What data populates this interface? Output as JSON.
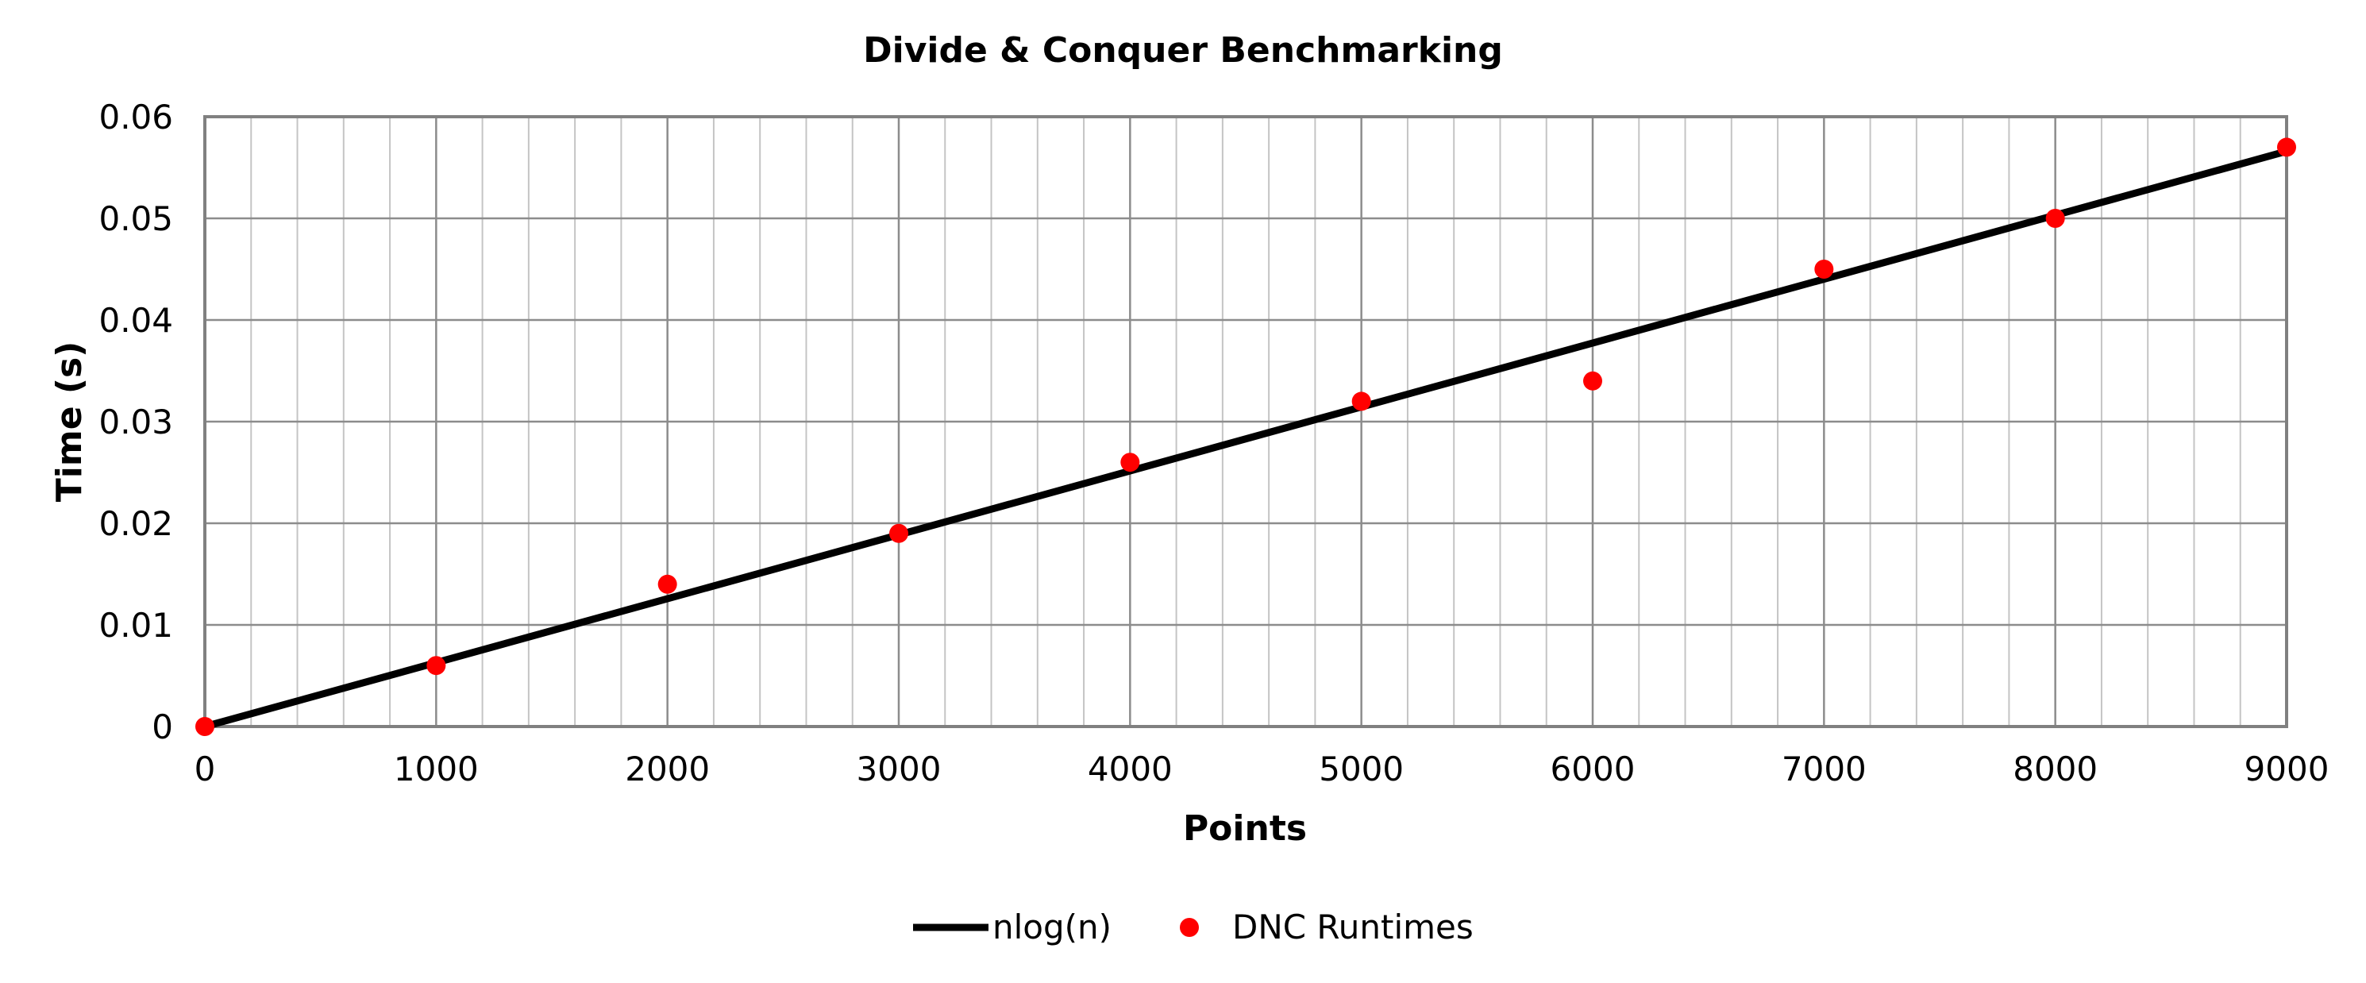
{
  "chart_data": {
    "type": "scatter",
    "title": "Divide & Conquer Benchmarking",
    "xlabel": "Points",
    "ylabel": "Time (s)",
    "xlim": [
      0,
      9000
    ],
    "ylim": [
      0,
      0.06
    ],
    "x_ticks": [
      "0",
      "1000",
      "2000",
      "3000",
      "4000",
      "5000",
      "6000",
      "7000",
      "8000",
      "9000"
    ],
    "y_ticks": [
      "0",
      "0.01",
      "0.02",
      "0.03",
      "0.04",
      "0.05",
      "0.06"
    ],
    "grid": true,
    "legend_position": "bottom",
    "series": [
      {
        "name": "nlog(n)",
        "kind": "line",
        "color": "#000000",
        "x": [
          0,
          9000
        ],
        "y": [
          0,
          0.0566
        ]
      },
      {
        "name": "DNC Runtimes",
        "kind": "scatter",
        "color": "#ff0000",
        "x": [
          0,
          1000,
          2000,
          3000,
          4000,
          5000,
          6000,
          7000,
          8000,
          9000
        ],
        "y": [
          0,
          0.006,
          0.014,
          0.019,
          0.026,
          0.032,
          0.034,
          0.045,
          0.05,
          0.057
        ]
      }
    ]
  }
}
